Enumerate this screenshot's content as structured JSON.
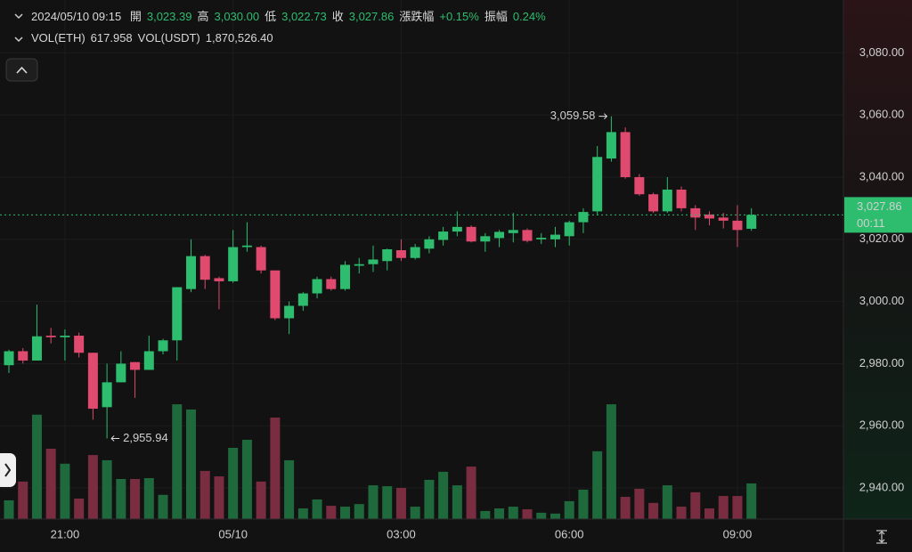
{
  "legend": {
    "time": "2024/05/10 09:15",
    "items": [
      {
        "label": "開",
        "value": "3,023.39"
      },
      {
        "label": "高",
        "value": "3,030.00"
      },
      {
        "label": "低",
        "value": "3,022.73"
      },
      {
        "label": "收",
        "value": "3,027.86"
      },
      {
        "label": "漲跌幅",
        "value": "+0.15%"
      },
      {
        "label": "振幅",
        "value": "0.24%"
      }
    ],
    "volume_items": [
      {
        "label": "VOL(ETH)",
        "value": "617.958"
      },
      {
        "label": "VOL(USDT)",
        "value": "1,870,526.40"
      }
    ]
  },
  "chart_data": {
    "type": "candlestick",
    "categories": [
      null,
      null,
      null,
      null,
      "21:00",
      null,
      null,
      null,
      null,
      null,
      null,
      null,
      null,
      null,
      null,
      null,
      "05/10",
      null,
      null,
      null,
      null,
      null,
      null,
      null,
      null,
      null,
      null,
      null,
      "03:00",
      null,
      null,
      null,
      null,
      null,
      null,
      null,
      null,
      null,
      null,
      null,
      "06:00",
      null,
      null,
      null,
      null,
      null,
      null,
      null,
      null,
      null,
      null,
      null,
      "09:00",
      null
    ],
    "open": [
      2979.5,
      2984,
      2981,
      2989,
      2988.5,
      2989,
      2983.5,
      2966,
      2974,
      2980.5,
      2978,
      2984,
      2987.5,
      3004,
      3014.6,
      3007.5,
      3006.5,
      3017.5,
      3017.5,
      3010,
      2994.6,
      2998.6,
      3002.6,
      3007.2,
      3004,
      3011.5,
      3012,
      3013,
      3016.5,
      3014,
      3017,
      3019.8,
      3022.5,
      3024,
      3019.3,
      3020.4,
      3022,
      3023,
      3020,
      3020,
      3021,
      3025.5,
      3029,
      3046,
      3054.5,
      3040,
      3034.5,
      3029,
      3036,
      3030,
      3028,
      3027,
      3026,
      3023.39
    ],
    "high": [
      2984.5,
      2985,
      2999,
      2991.5,
      2991,
      2990,
      2983.5,
      2980,
      2984,
      2980.5,
      2989,
      2988,
      3004.6,
      3020,
      3015,
      3008,
      3023,
      3025.5,
      3018,
      3010,
      3000,
      3003,
      3008,
      3008,
      3013,
      3014,
      3018,
      3017,
      3020,
      3018.5,
      3021,
      3024,
      3029,
      3024.5,
      3022,
      3023,
      3028.5,
      3023.5,
      3022,
      3024,
      3026,
      3030,
      3050,
      3059.58,
      3056,
      3041,
      3035,
      3040,
      3037,
      3031,
      3029,
      3028.5,
      3031,
      3030
    ],
    "low": [
      2977,
      2980,
      2981,
      2986.5,
      2981,
      2982,
      2962,
      2955.94,
      2974,
      2969,
      2978,
      2983,
      2981,
      3003,
      3004,
      2997.5,
      3006,
      3016,
      3009,
      2994,
      2989.5,
      2997,
      3001,
      3003.5,
      3003.5,
      3009,
      3009.5,
      3010,
      3013,
      3013.5,
      3015.5,
      3018,
      3021,
      3019,
      3016,
      3017.5,
      3019,
      3019,
      3018.5,
      3017.5,
      3018,
      3022,
      3028,
      3045,
      3039.5,
      3034,
      3028.5,
      3028.5,
      3029,
      3023,
      3024.5,
      3023.5,
      3017.5,
      3022.73
    ],
    "close": [
      2984,
      2981,
      2988.8,
      2988.5,
      2989,
      2983.5,
      2965.5,
      2974,
      2980,
      2978,
      2984,
      2987.5,
      3004.6,
      3014.6,
      3007,
      3006.5,
      3017.5,
      3018,
      3010,
      2994.6,
      2998.6,
      3002.6,
      3007.2,
      3004,
      3011.8,
      3012,
      3013.5,
      3016.8,
      3014,
      3017.5,
      3020,
      3022.5,
      3024,
      3019.3,
      3021,
      3022.4,
      3023,
      3019.5,
      3020.5,
      3021.5,
      3025.5,
      3028.8,
      3046.5,
      3054.5,
      3040,
      3034.5,
      3029,
      3036,
      3030,
      3027,
      3026.7,
      3026,
      3023,
      3027.86
    ],
    "volume": [
      325,
      650,
      1810,
      1220,
      960,
      355,
      1110,
      1020,
      695,
      695,
      710,
      420,
      1990,
      1900,
      835,
      740,
      1235,
      1375,
      650,
      1760,
      1020,
      185,
      340,
      230,
      215,
      260,
      585,
      570,
      540,
      215,
      680,
      820,
      585,
      910,
      140,
      185,
      215,
      170,
      110,
      95,
      310,
      510,
      1175,
      1990,
      385,
      525,
      280,
      585,
      215,
      465,
      185,
      400,
      400,
      617.958
    ],
    "up_color": "#2ebd6e",
    "down_color": "#e04a6e",
    "volume_up_color": "#1f6a3c",
    "volume_down_color": "#7a2c41",
    "ylim": [
      2930,
      3097
    ],
    "y2lim": [
      0,
      9000
    ],
    "yticks": [
      {
        "value": 2940,
        "label": "2,940.00"
      },
      {
        "value": 2960,
        "label": "2,960.00"
      },
      {
        "value": 2980,
        "label": "2,980.00"
      },
      {
        "value": 3000,
        "label": "3,000.00"
      },
      {
        "value": 3020,
        "label": "3,020.00"
      },
      {
        "value": 3040,
        "label": "3,040.00"
      },
      {
        "value": 3060,
        "label": "3,060.00"
      },
      {
        "value": 3080,
        "label": "3,080.00"
      }
    ],
    "high_label": "3,059.58",
    "low_label": "2,955.94",
    "last_price_label": "3,027.86",
    "countdown": "00:11",
    "grid": true
  }
}
